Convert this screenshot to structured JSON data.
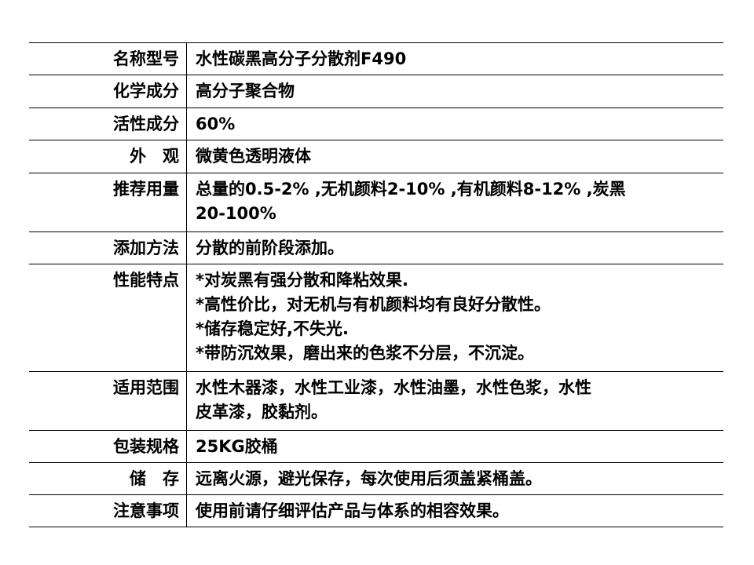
{
  "rows": [
    {
      "label": "名称型号",
      "lines": [
        "水性碳黑高分子分散剂F490"
      ]
    },
    {
      "label": "化学成分",
      "lines": [
        "高分子聚合物"
      ]
    },
    {
      "label": "活性成分",
      "lines": [
        "60%"
      ]
    },
    {
      "label": "外　观",
      "lines": [
        "微黄色透明液体"
      ]
    },
    {
      "label": "推荐用量",
      "lines": [
        "总量的0.5-2% ,无机颜料2-10% ,有机颜料8-12% ,炭黑",
        "20-100%"
      ]
    },
    {
      "label": "添加方法",
      "lines": [
        "分散的前阶段添加。"
      ]
    },
    {
      "label": "性能特点",
      "lines": [
        "*对炭黑有强分散和降粘效果.",
        "*高性价比，对无机与有机颜料均有良好分散性。",
        "*储存稳定好,不失光.",
        "*带防沉效果，磨出来的色浆不分层，不沉淀。"
      ]
    },
    {
      "label": "适用范围",
      "lines": [
        "水性木器漆，水性工业漆，水性油墨，水性色浆，水性",
        "皮革漆，胶黏剂。"
      ]
    },
    {
      "label": "包装规格",
      "lines": [
        "25KG胶桶"
      ]
    },
    {
      "label": "储　存",
      "lines": [
        "远离火源，避光保存，每次使用后须盖紧桶盖。"
      ]
    },
    {
      "label": "注意事项",
      "lines": [
        "使用前请仔细评估产品与体系的相容效果。"
      ]
    }
  ]
}
